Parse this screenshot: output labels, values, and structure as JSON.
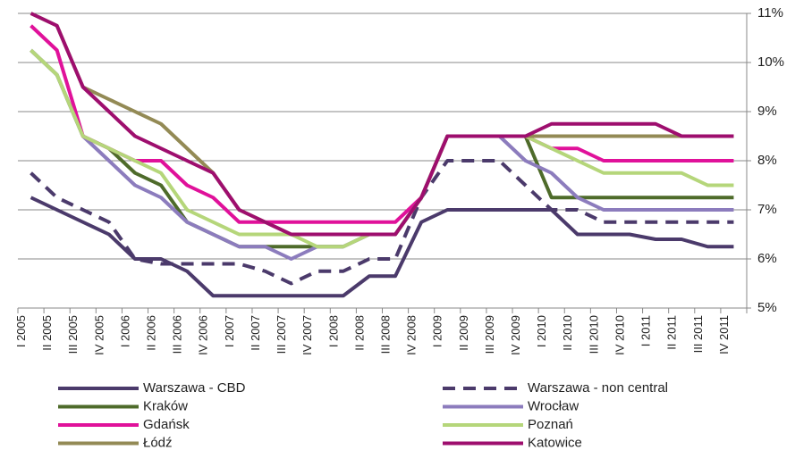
{
  "chart_data": {
    "type": "line",
    "categories": [
      "I 2005",
      "II 2005",
      "III 2005",
      "IV 2005",
      "I 2006",
      "II 2006",
      "III 2006",
      "IV 2006",
      "I 2007",
      "II 2007",
      "III 2007",
      "IV 2007",
      "I 2008",
      "II 2008",
      "III 2008",
      "IV 2008",
      "I 2009",
      "II 2009",
      "III 2009",
      "IV 2009",
      "I 2010",
      "II 2010",
      "III 2010",
      "IV 2010",
      "I 2011",
      "II 2011",
      "III 2011",
      "IV 2011"
    ],
    "series": [
      {
        "name": "Warszawa - CBD",
        "color": "#4b3a6b",
        "style": "solid",
        "values": [
          7.25,
          7.0,
          6.75,
          6.5,
          6.0,
          6.0,
          5.75,
          5.25,
          5.25,
          5.25,
          5.25,
          5.25,
          5.25,
          5.65,
          5.65,
          6.75,
          7.0,
          7.0,
          7.0,
          7.0,
          7.0,
          6.5,
          6.5,
          6.5,
          6.4,
          6.4,
          6.25,
          6.25
        ]
      },
      {
        "name": "Warszawa - non central",
        "color": "#4b3a6b",
        "style": "dashed",
        "values": [
          7.75,
          7.25,
          7.0,
          6.75,
          6.0,
          5.9,
          5.9,
          5.9,
          5.9,
          5.75,
          5.5,
          5.75,
          5.75,
          6.0,
          6.0,
          7.25,
          8.0,
          8.0,
          8.0,
          7.5,
          7.0,
          7.0,
          6.75,
          6.75,
          6.75,
          6.75,
          6.75,
          6.75
        ]
      },
      {
        "name": "Kraków",
        "color": "#4e6b2a",
        "style": "solid",
        "values": [
          10.25,
          9.75,
          8.5,
          8.25,
          7.75,
          7.5,
          6.75,
          6.5,
          6.25,
          6.25,
          6.25,
          6.25,
          6.25,
          6.5,
          6.5,
          7.25,
          8.5,
          8.5,
          8.5,
          8.5,
          7.25,
          7.25,
          7.25,
          7.25,
          7.25,
          7.25,
          7.25,
          7.25
        ]
      },
      {
        "name": "Wrocław",
        "color": "#8c7cbd",
        "style": "solid",
        "values": [
          10.25,
          9.75,
          8.5,
          8.0,
          7.5,
          7.25,
          6.75,
          6.5,
          6.25,
          6.25,
          6.0,
          6.25,
          6.25,
          6.5,
          6.5,
          7.25,
          8.5,
          8.5,
          8.5,
          8.0,
          7.75,
          7.25,
          7.0,
          7.0,
          7.0,
          7.0,
          7.0,
          7.0
        ]
      },
      {
        "name": "Gdańsk",
        "color": "#e0119a",
        "style": "solid",
        "values": [
          10.75,
          10.25,
          8.5,
          8.25,
          8.0,
          8.0,
          7.5,
          7.25,
          6.75,
          6.75,
          6.75,
          6.75,
          6.75,
          6.75,
          6.75,
          7.25,
          8.5,
          8.5,
          8.5,
          8.5,
          8.25,
          8.25,
          8.0,
          8.0,
          8.0,
          8.0,
          8.0,
          8.0
        ]
      },
      {
        "name": "Poznań",
        "color": "#b5d67a",
        "style": "solid",
        "values": [
          10.25,
          9.75,
          8.5,
          8.25,
          8.0,
          7.75,
          7.0,
          6.75,
          6.5,
          6.5,
          6.5,
          6.25,
          6.25,
          6.5,
          6.5,
          7.25,
          8.5,
          8.5,
          8.5,
          8.5,
          8.25,
          8.0,
          7.75,
          7.75,
          7.75,
          7.75,
          7.5,
          7.5
        ]
      },
      {
        "name": "Łódź",
        "color": "#938a55",
        "style": "solid",
        "values": [
          11.0,
          10.75,
          9.5,
          9.25,
          9.0,
          8.75,
          8.25,
          7.75,
          7.0,
          6.75,
          6.5,
          6.5,
          6.5,
          6.5,
          6.5,
          7.25,
          8.5,
          8.5,
          8.5,
          8.5,
          8.5,
          8.5,
          8.5,
          8.5,
          8.5,
          8.5,
          8.5,
          8.5
        ]
      },
      {
        "name": "Katowice",
        "color": "#9e0e6e",
        "style": "solid",
        "values": [
          11.0,
          10.75,
          9.5,
          9.0,
          8.5,
          8.25,
          8.0,
          7.75,
          7.0,
          6.75,
          6.5,
          6.5,
          6.5,
          6.5,
          6.5,
          7.25,
          8.5,
          8.5,
          8.5,
          8.5,
          8.75,
          8.75,
          8.75,
          8.75,
          8.75,
          8.5,
          8.5,
          8.5
        ]
      }
    ],
    "ylim": [
      5,
      11
    ],
    "yticks": [
      {
        "value": 5,
        "label": "5%"
      },
      {
        "value": 6,
        "label": "6%"
      },
      {
        "value": 7,
        "label": "7%"
      },
      {
        "value": 8,
        "label": "8%"
      },
      {
        "value": 9,
        "label": "9%"
      },
      {
        "value": 10,
        "label": "10%"
      },
      {
        "value": 11,
        "label": "11%"
      }
    ],
    "grid": true,
    "legend": "bottom"
  }
}
